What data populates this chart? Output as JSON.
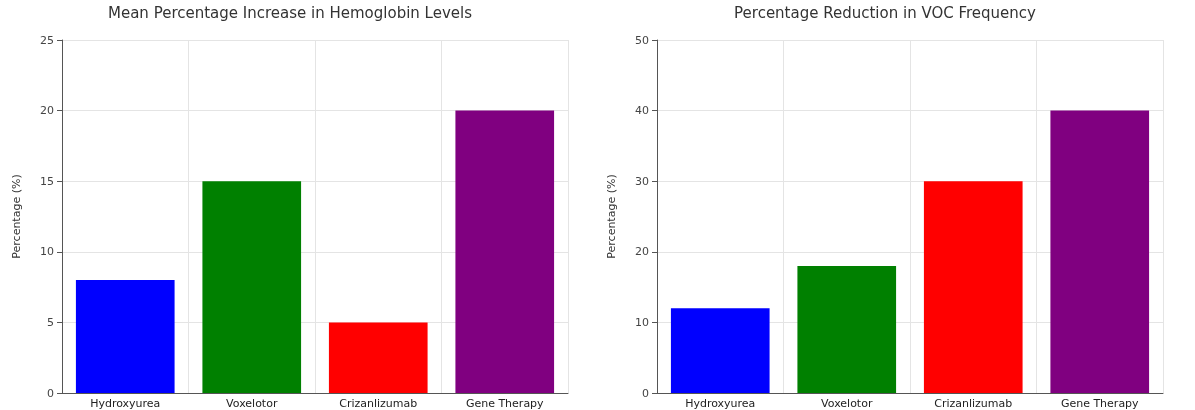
{
  "chart_data": [
    {
      "type": "bar",
      "title": "Mean Percentage Increase in Hemoglobin Levels",
      "ylabel": "Percentage (%)",
      "categories": [
        "Hydroxyurea",
        "Voxelotor",
        "Crizanlizumab",
        "Gene Therapy"
      ],
      "values": [
        8,
        15,
        5,
        20
      ],
      "colors": [
        "#0000ff",
        "#008000",
        "#ff0000",
        "#800080"
      ],
      "ylim": [
        0,
        25
      ],
      "yticks": [
        0,
        5,
        10,
        15,
        20,
        25
      ],
      "grid": true
    },
    {
      "type": "bar",
      "title": "Percentage Reduction in VOC Frequency",
      "ylabel": "Percentage (%)",
      "categories": [
        "Hydroxyurea",
        "Voxelotor",
        "Crizanlizumab",
        "Gene Therapy"
      ],
      "values": [
        12,
        18,
        30,
        40
      ],
      "colors": [
        "#0000ff",
        "#008000",
        "#ff0000",
        "#800080"
      ],
      "ylim": [
        0,
        50
      ],
      "yticks": [
        0,
        10,
        20,
        30,
        40,
        50
      ],
      "grid": true
    }
  ]
}
